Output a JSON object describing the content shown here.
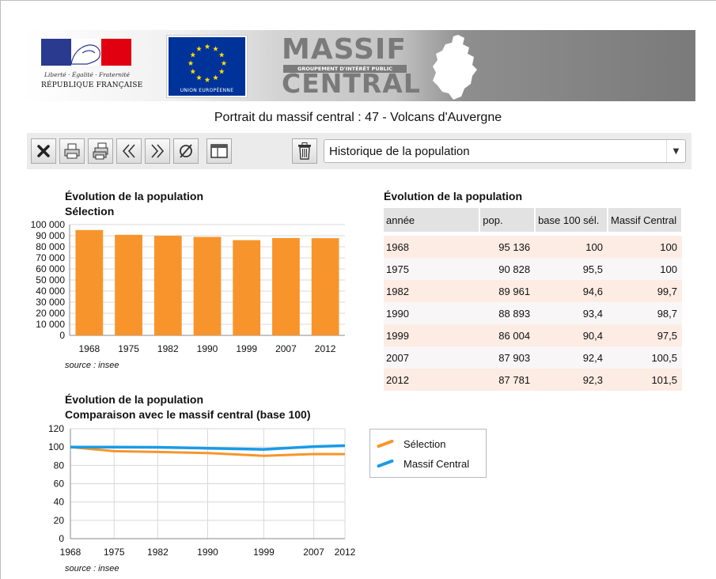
{
  "header": {
    "rf_motto": "Liberté · Égalité · Fraternité",
    "rf_name": "RÉPUBLIQUE FRANÇAISE",
    "eu_caption": "UNION EUROPÉENNE",
    "mc_title_top": "MASSIF",
    "mc_subtitle": "GROUPEMENT D'INTÉRÊT PUBLIC",
    "mc_title_bottom": "CENTRAL",
    "colors": {
      "rf_blue": "#2a3a8f",
      "rf_red": "#e1000f",
      "eu_blue": "#003399",
      "eu_star": "#ffdd00"
    }
  },
  "page_title": "Portrait du massif central : 47 - Volcans d'Auvergne",
  "toolbar": {
    "buttons": [
      {
        "name": "close",
        "icon": "close-icon"
      },
      {
        "name": "print",
        "icon": "print-icon"
      },
      {
        "name": "print-all",
        "icon": "print-multiple-icon"
      },
      {
        "name": "previous",
        "icon": "chevrons-left-icon"
      },
      {
        "name": "next",
        "icon": "chevrons-right-icon"
      },
      {
        "name": "clear",
        "icon": "empty-set-icon"
      },
      {
        "name": "layout",
        "icon": "panel-layout-icon"
      },
      {
        "name": "delete",
        "icon": "trash-icon"
      }
    ],
    "select_value": "Historique de la population"
  },
  "bar_chart": {
    "title_line1": "Évolution de la population",
    "title_line2": "Sélection",
    "source": "source : insee"
  },
  "line_chart": {
    "title_line1": "Évolution de la population",
    "title_line2": "Comparaison avec le massif central (base 100)",
    "source": "source : insee"
  },
  "table": {
    "title": "Évolution de la population",
    "headers": [
      "année",
      "pop.",
      "base 100 sél.",
      "Massif Central"
    ],
    "rows": [
      [
        "1968",
        "95 136",
        "100",
        "100"
      ],
      [
        "1975",
        "90 828",
        "95,5",
        "100"
      ],
      [
        "1982",
        "89 961",
        "94,6",
        "99,7"
      ],
      [
        "1990",
        "88 893",
        "93,4",
        "98,7"
      ],
      [
        "1999",
        "86 004",
        "90,4",
        "97,5"
      ],
      [
        "2007",
        "87 903",
        "92,4",
        "100,5"
      ],
      [
        "2012",
        "87 781",
        "92,3",
        "101,5"
      ]
    ]
  },
  "legend": {
    "items": [
      {
        "label": "Sélection",
        "color": "#f7952c"
      },
      {
        "label": "Massif Central",
        "color": "#1a9be6"
      }
    ]
  },
  "chart_data": [
    {
      "type": "bar",
      "categories": [
        "1968",
        "1975",
        "1982",
        "1990",
        "1999",
        "2007",
        "2012"
      ],
      "values": [
        95136,
        90828,
        89961,
        88893,
        86004,
        87903,
        87781
      ],
      "ylim": [
        0,
        100000
      ],
      "yticks": [
        0,
        10000,
        20000,
        30000,
        40000,
        50000,
        60000,
        70000,
        80000,
        90000,
        100000
      ],
      "ytick_labels": [
        "0",
        "10 000",
        "20 000",
        "30 000",
        "40 000",
        "50 000",
        "60 000",
        "70 000",
        "80 000",
        "90 000",
        "100 000"
      ],
      "color": "#f7952c",
      "grid": true
    },
    {
      "type": "line",
      "x": [
        1968,
        1975,
        1982,
        1990,
        1999,
        2007,
        2012
      ],
      "xtick_labels": [
        "1968",
        "1975",
        "1982",
        "1990",
        "1999",
        "2007",
        "2012"
      ],
      "series": [
        {
          "name": "Sélection",
          "values": [
            100,
            95.5,
            94.6,
            93.4,
            90.4,
            92.4,
            92.3
          ],
          "color": "#f7952c"
        },
        {
          "name": "Massif Central",
          "values": [
            100,
            100,
            99.7,
            98.7,
            97.5,
            100.5,
            101.5
          ],
          "color": "#1a9be6"
        }
      ],
      "ylim": [
        0,
        120
      ],
      "yticks": [
        0,
        20,
        40,
        60,
        80,
        100,
        120
      ],
      "grid": true
    }
  ]
}
